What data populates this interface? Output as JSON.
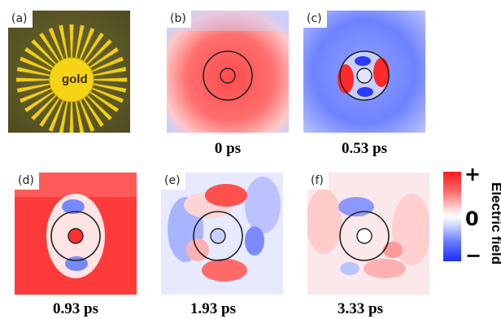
{
  "panels": [
    {
      "label": "(a)",
      "time": ""
    },
    {
      "label": "(b)",
      "time": "0 ps"
    },
    {
      "label": "(c)",
      "time": "0.53 ps"
    },
    {
      "label": "(d)",
      "time": "0.93 ps"
    },
    {
      "label": "(e)",
      "time": "1.93 ps"
    },
    {
      "label": "(f)",
      "time": "3.33 ps"
    }
  ],
  "sample_text": "gold",
  "colorbar": {
    "title": "Electric field",
    "plus": "+",
    "zero": "0",
    "minus": "−",
    "top_color": "#ff1a1a",
    "bottom_color": "#1a2bff"
  }
}
